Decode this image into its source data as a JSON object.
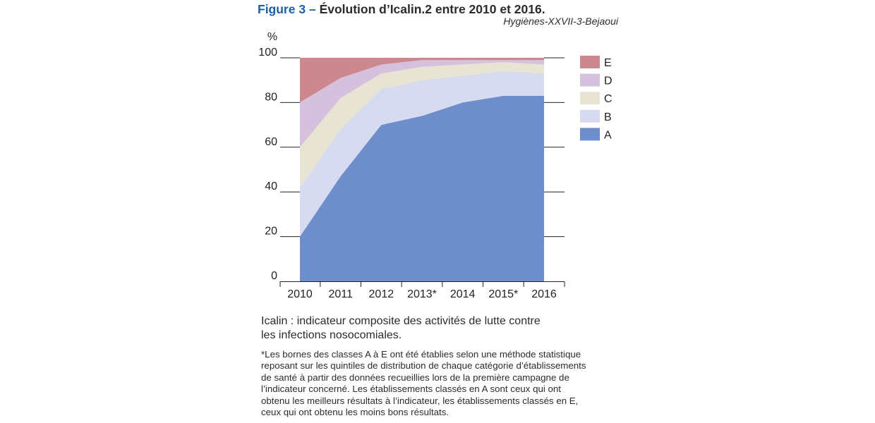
{
  "header": {
    "figure_label": "Figure 3",
    "separator": "–",
    "title": "Évolution d’Icalin.2 entre 2010 et 2016.",
    "source": "Hygiènes-XXVII-3-Bejaoui"
  },
  "chart_data": {
    "type": "area",
    "stacked": true,
    "x": [
      "2010",
      "2011",
      "2012",
      "2013*",
      "2014",
      "2015*",
      "2016"
    ],
    "ylabel": "%",
    "ylim": [
      0,
      100
    ],
    "yticks": [
      0,
      20,
      40,
      60,
      80,
      100
    ],
    "legend_position": "right",
    "series": [
      {
        "name": "A",
        "color": "#6e8ecb",
        "values": [
          20,
          47,
          70,
          74,
          80,
          83,
          83
        ]
      },
      {
        "name": "B",
        "color": "#d6dbef",
        "values": [
          22,
          21,
          16,
          16,
          12,
          11,
          10
        ]
      },
      {
        "name": "C",
        "color": "#e7e4d3",
        "values": [
          18,
          14,
          7,
          6,
          5,
          4,
          4
        ]
      },
      {
        "name": "D",
        "color": "#d5c1dd",
        "values": [
          20,
          9,
          4,
          3,
          2,
          1,
          2
        ]
      },
      {
        "name": "E",
        "color": "#cd878f",
        "values": [
          20,
          9,
          3,
          1,
          1,
          1,
          1
        ]
      }
    ]
  },
  "notes": {
    "lines": [
      "Icalin : indicateur composite des activités de lutte contre",
      "les infections nosocomiales."
    ]
  },
  "footnote": {
    "lines": [
      "*Les bornes des classes A à E ont été établies selon une méthode statistique",
      "reposant sur les quintiles de distribution de chaque catégorie d’établissements",
      "de santé à partir des données recueillies lors de la première campagne de",
      "l’indicateur concerné. Les établissements classés en A sont ceux qui ont",
      "obtenu les meilleurs résultats à l’indicateur, les établissements classés en E,",
      "ceux qui ont obtenu les moins bons résultats."
    ]
  }
}
